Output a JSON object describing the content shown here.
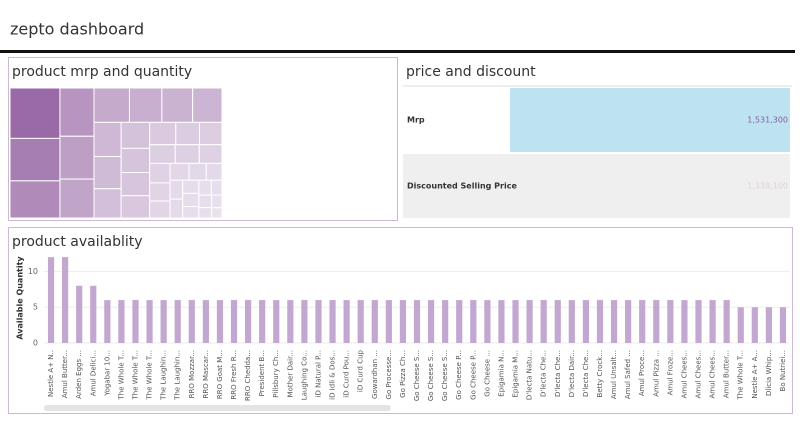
{
  "title": "zepto dashboard",
  "chart_data": [
    {
      "type": "treemap",
      "title": "product mrp and quantity",
      "values": [
        95,
        80,
        70,
        62,
        55,
        50,
        46,
        42,
        40,
        38,
        35,
        33,
        30,
        28,
        26,
        25,
        24,
        22,
        20,
        19,
        18,
        17,
        16,
        15,
        14,
        13,
        12,
        11,
        10,
        9,
        9,
        8,
        8,
        7,
        7,
        6,
        6,
        5,
        5,
        4
      ],
      "color": "#9a6aa6"
    },
    {
      "type": "table_bar",
      "title": "price and discount",
      "categories": [
        "Mrp",
        "Discounted Selling Price"
      ],
      "values": [
        1531300,
        1338100
      ],
      "value_labels": [
        "1,531,300",
        "1,338,100"
      ],
      "xlim": [
        0,
        1531300
      ],
      "colors": [
        "#bde3f1",
        "#efefef"
      ]
    },
    {
      "type": "bar",
      "title": "product availablity",
      "ylabel": "Available Quantity",
      "categories": [
        "Nestle A+ N..",
        "Amul Butter...",
        "Arden Eggs ...",
        "Amul Delici...",
        "Yogabar 10...",
        "The Whole T...",
        "The Whole T...",
        "The Whole T...",
        "The Laughin...",
        "The Laughin...",
        "RRO Mozzar...",
        "RRO Mascar...",
        "RRO Goat M...",
        "RRO Fresh R...",
        "RRO Chedda...",
        "President B...",
        "Pillsbury Ch...",
        "Mother Dair...",
        "Laughing Co...",
        "iD Natural P...",
        "iD Idli & Dos...",
        "iD Curd Pou...",
        "iD Curd Cup",
        "Gowardhan ...",
        "Go Processe...",
        "Go Pizza Ch...",
        "Go Cheese S...",
        "Go Cheese S...",
        "Go Cheese S...",
        "Go Cheese P...",
        "Go Cheese P...",
        "Go Cheese ...",
        "Epigamia N...",
        "Epigamia M...",
        "D'lecta Natu...",
        "D'lecta Che...",
        "D'lecta Che...",
        "D'lecta Dair...",
        "D'lecta Che...",
        "Betty Crock...",
        "Amul Unsalt...",
        "Amul Safed ...",
        "Amul Proce...",
        "Amul Pizza ...",
        "Amul Froze...",
        "Amul Chees...",
        "Amul Chees...",
        "Amul Chees...",
        "Amul Butter...",
        "The Whole T...",
        "Nestle A+ A...",
        "Dlicia Whip...",
        "Bo Nutriei..."
      ],
      "values": [
        12,
        12,
        8,
        8,
        6,
        6,
        6,
        6,
        6,
        6,
        6,
        6,
        6,
        6,
        6,
        6,
        6,
        6,
        6,
        6,
        6,
        6,
        6,
        6,
        6,
        6,
        6,
        6,
        6,
        6,
        6,
        6,
        6,
        6,
        6,
        6,
        6,
        6,
        6,
        6,
        6,
        6,
        6,
        6,
        6,
        6,
        6,
        6,
        6,
        5,
        5,
        5,
        5
      ],
      "color": "#c2a8d0",
      "ylim": [
        0,
        13
      ],
      "yticks": [
        0,
        5,
        10
      ]
    }
  ]
}
